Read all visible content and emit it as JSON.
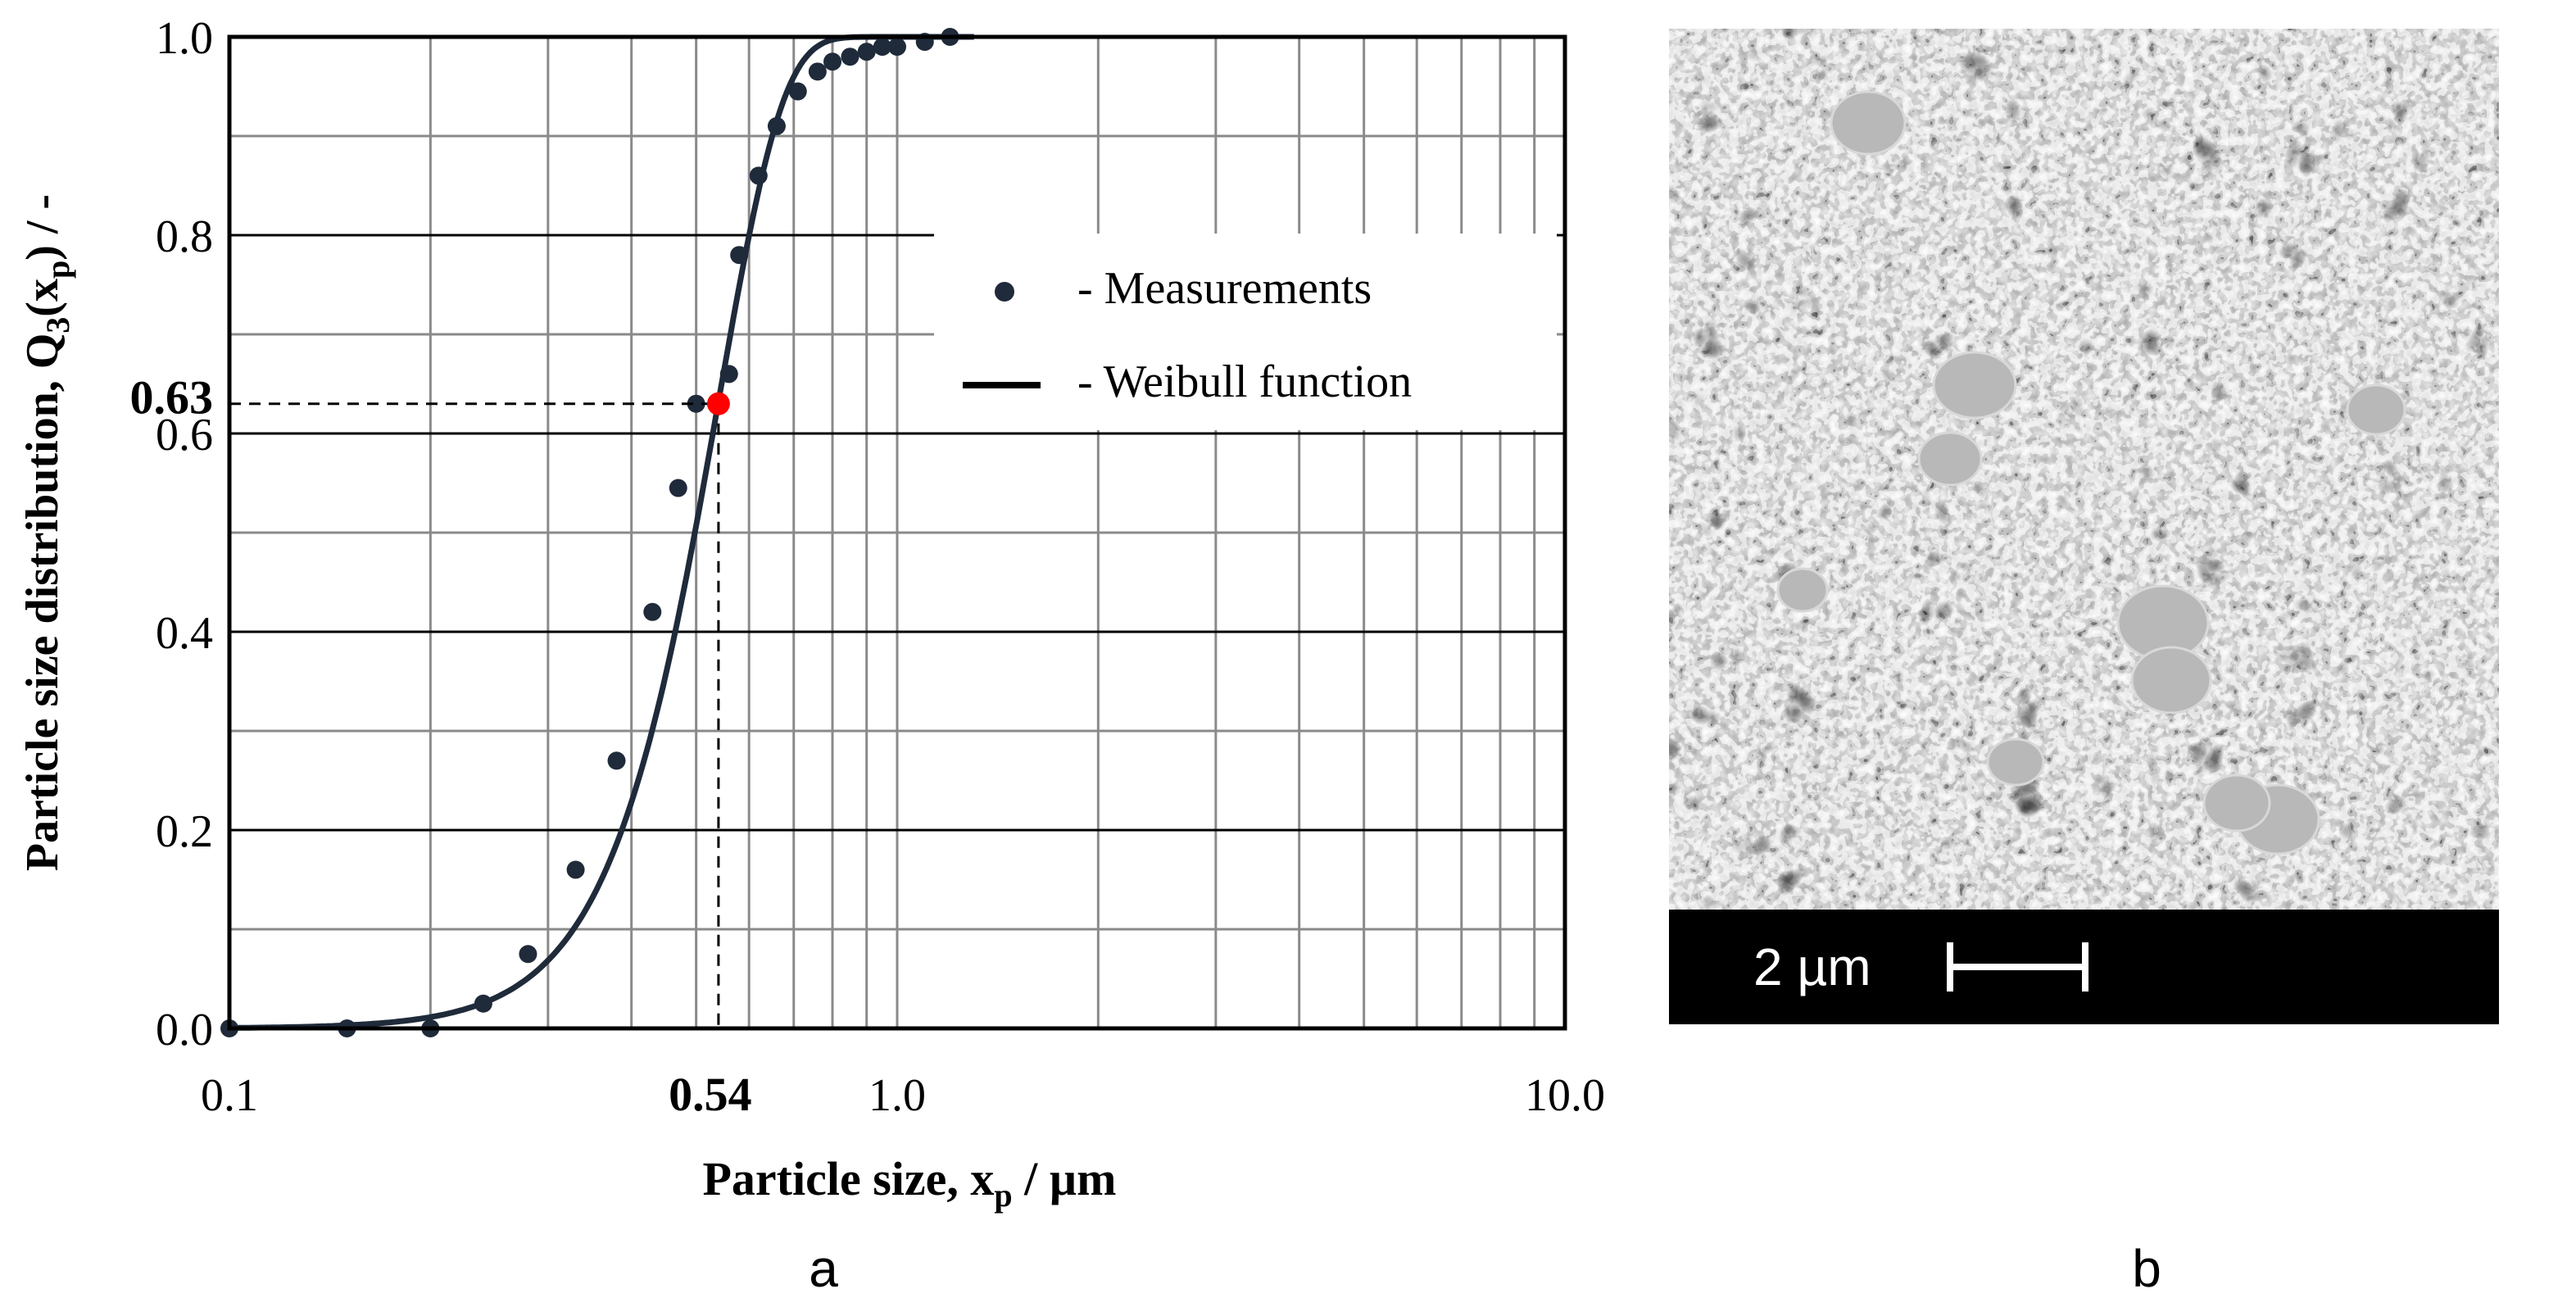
{
  "chart_data": {
    "type": "scatter",
    "title": "",
    "xlabel": "Particle size, x",
    "xlabel_sub": "p",
    "xlabel_unit": " / µm",
    "ylabel": "Particle size distribution,  Q",
    "ylabel_sub3": "3",
    "ylabel_mid": "(x",
    "ylabel_subp": "p",
    "ylabel_end": ") / -",
    "xscale": "log",
    "xlim": [
      0.1,
      10.0
    ],
    "ylim": [
      0.0,
      1.0
    ],
    "x_tick_labels": [
      "0.1",
      "1.0",
      "10.0"
    ],
    "y_tick_labels": [
      "0.0",
      "0.2",
      "0.4",
      "0.6",
      "0.8",
      "1.0"
    ],
    "grid": true,
    "series": [
      {
        "name": "Measurements",
        "kind": "points",
        "x": [
          0.1,
          0.15,
          0.2,
          0.24,
          0.28,
          0.33,
          0.38,
          0.43,
          0.47,
          0.5,
          0.56,
          0.58,
          0.62,
          0.66,
          0.71,
          0.76,
          0.8,
          0.85,
          0.9,
          0.95,
          1.0,
          1.1,
          1.2
        ],
        "y": [
          0.0,
          0.0,
          0.0,
          0.025,
          0.075,
          0.16,
          0.27,
          0.42,
          0.545,
          0.63,
          0.66,
          0.78,
          0.86,
          0.91,
          0.945,
          0.965,
          0.975,
          0.98,
          0.985,
          0.99,
          0.99,
          0.995,
          1.0
        ]
      },
      {
        "name": "Weibull function",
        "kind": "line",
        "scale_x63": 0.54,
        "shape_k": 4.5
      }
    ],
    "annotation": {
      "x_value": 0.54,
      "y_value": 0.63,
      "x_label": "0.54",
      "y_label": "0.63",
      "color": "#ff0000"
    },
    "legend": {
      "position": "right-middle",
      "items": [
        "- Measurements",
        "- Weibull function"
      ]
    },
    "panel_label": "a"
  },
  "micrograph": {
    "scale_bar_label": "2 µm",
    "panel_label": "b"
  },
  "colors": {
    "curve": "#1f2a3a",
    "grid": "#8a8a8a",
    "axis": "#000000",
    "highlight": "#ff0000"
  }
}
